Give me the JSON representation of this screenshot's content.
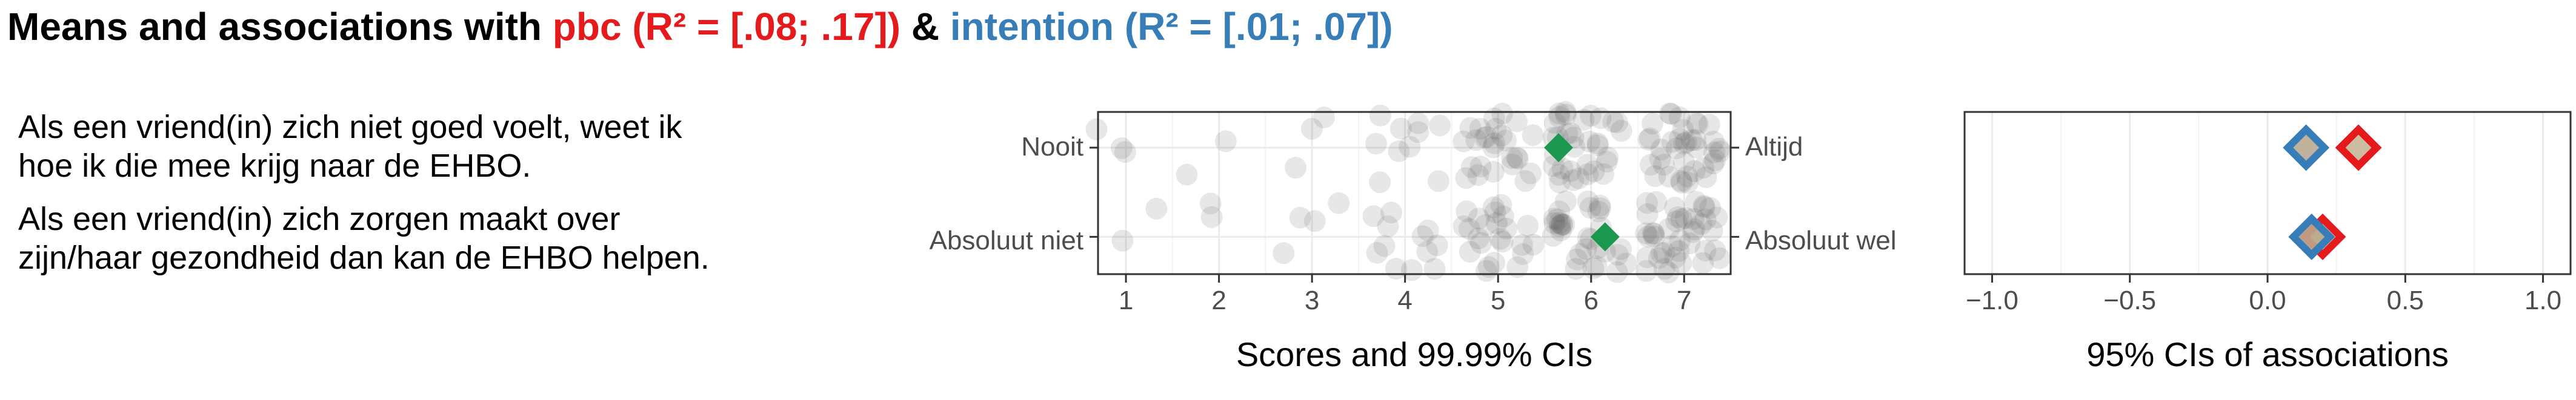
{
  "title": {
    "part1": "Means and associations with ",
    "pbc": "pbc (R² = [.08; .17])",
    "amp": " & ",
    "intention": "intention (R² = [.01; .07])"
  },
  "items": [
    {
      "line1": "Als een vriend(in) zich niet goed voelt, weet ik",
      "line2": "hoe ik die mee krijg naar de EHBO."
    },
    {
      "line1": "Als een vriend(in) zich zorgen maakt over",
      "line2": "zijn/haar gezondheid dan kan de EHBO helpen."
    }
  ],
  "colors": {
    "pbc": "#e41a1c",
    "intention": "#377eb8",
    "mean": "#1a9850",
    "points": "#555555",
    "grid": "#ebebeb"
  },
  "chart_data": [
    {
      "type": "scatter",
      "xlabel": "Scores and 99.99% CIs",
      "xlim": [
        0.7,
        7.5
      ],
      "xticks": [
        1,
        2,
        3,
        4,
        5,
        6,
        7
      ],
      "rows": [
        {
          "left_anchor": "Nooit",
          "right_anchor": "Altijd",
          "mean": 5.65
        },
        {
          "left_anchor": "Absoluut niet",
          "right_anchor": "Absoluut wel",
          "mean": 6.15
        }
      ],
      "grid": true
    },
    {
      "type": "scatter",
      "xlabel": "95% CIs of associations",
      "xlim": [
        -1.1,
        1.1
      ],
      "xticks": [
        -1.0,
        -0.5,
        0.0,
        0.5,
        1.0
      ],
      "xtick_labels": [
        "−1.0",
        "−0.5",
        "0.0",
        "0.5",
        "1.0"
      ],
      "series": [
        {
          "name": "pbc",
          "values": [
            0.33,
            0.2
          ]
        },
        {
          "name": "intention",
          "values": [
            0.14,
            0.16
          ]
        }
      ],
      "grid": true
    }
  ]
}
